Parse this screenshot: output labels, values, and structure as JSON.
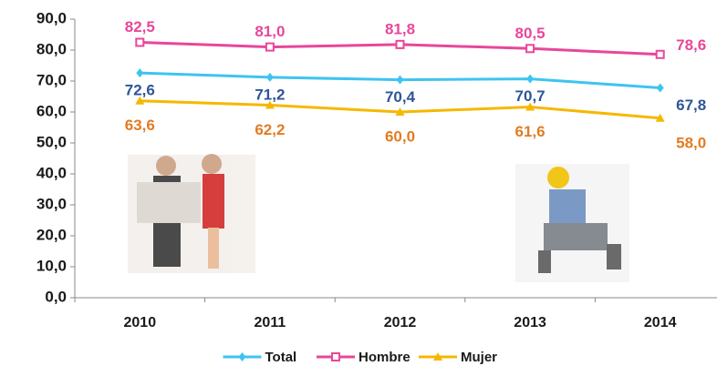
{
  "chart_data": {
    "type": "line",
    "categories": [
      "2010",
      "2011",
      "2012",
      "2013",
      "2014"
    ],
    "series": [
      {
        "name": "Total",
        "color": "#3ec4f0",
        "label_color": "#2f5597",
        "marker": "diamond",
        "values": [
          72.6,
          71.2,
          70.4,
          70.7,
          67.8
        ],
        "value_labels": [
          "72,6",
          "71,2",
          "70,4",
          "70,7",
          "67,8"
        ]
      },
      {
        "name": "Hombre",
        "color": "#e8479a",
        "label_color": "#e8479a",
        "marker": "square",
        "values": [
          82.5,
          81.0,
          81.8,
          80.5,
          78.6
        ],
        "value_labels": [
          "82,5",
          "81,0",
          "81,8",
          "80,5",
          "78,6"
        ]
      },
      {
        "name": "Mujer",
        "color": "#f5b800",
        "label_color": "#e47b20",
        "marker": "triangle",
        "values": [
          63.6,
          62.2,
          60.0,
          61.6,
          58.0
        ],
        "value_labels": [
          "63,6",
          "62,2",
          "60,0",
          "61,6",
          "58,0"
        ]
      }
    ],
    "ylim": [
      0,
      90
    ],
    "yticks": [
      {
        "value": 0,
        "label": "0,0"
      },
      {
        "value": 10,
        "label": "10,0"
      },
      {
        "value": 20,
        "label": "20,0"
      },
      {
        "value": 30,
        "label": "30,0"
      },
      {
        "value": 40,
        "label": "40,0"
      },
      {
        "value": 50,
        "label": "50,0"
      },
      {
        "value": 60,
        "label": "60,0"
      },
      {
        "value": 70,
        "label": "70,0"
      },
      {
        "value": 80,
        "label": "80,0"
      },
      {
        "value": 90,
        "label": "90,0"
      }
    ],
    "grid": false,
    "legend": "bottom"
  }
}
